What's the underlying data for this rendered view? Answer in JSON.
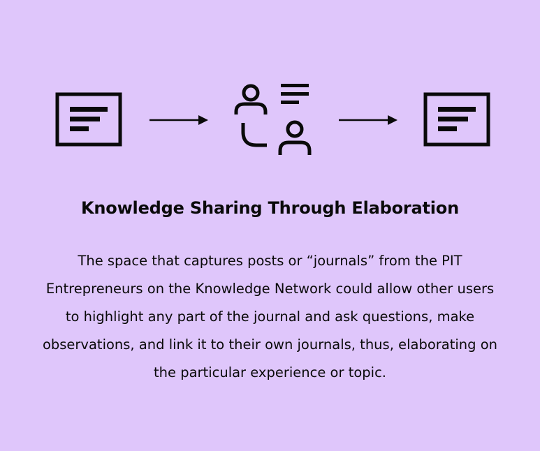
{
  "diagram": {
    "nodes": [
      {
        "id": "source-journal",
        "icon": "document-icon"
      },
      {
        "id": "people-discussion",
        "icon": "people-discussion-icon"
      },
      {
        "id": "elaborated-journal",
        "icon": "document-icon"
      }
    ],
    "edges": [
      {
        "from": "source-journal",
        "to": "people-discussion"
      },
      {
        "from": "people-discussion",
        "to": "elaborated-journal"
      }
    ]
  },
  "heading": "Knowledge Sharing Through Elaboration",
  "description": "The space that captures posts or “journals” from the PIT Entrepreneurs on the Knowledge Network could allow other users to highlight any part of the journal and ask questions, make observations, and link it to their own journals, thus, elaborating on the particular experience or topic.",
  "colors": {
    "background": "#dfc6fb",
    "ink": "#0a0a0a"
  }
}
